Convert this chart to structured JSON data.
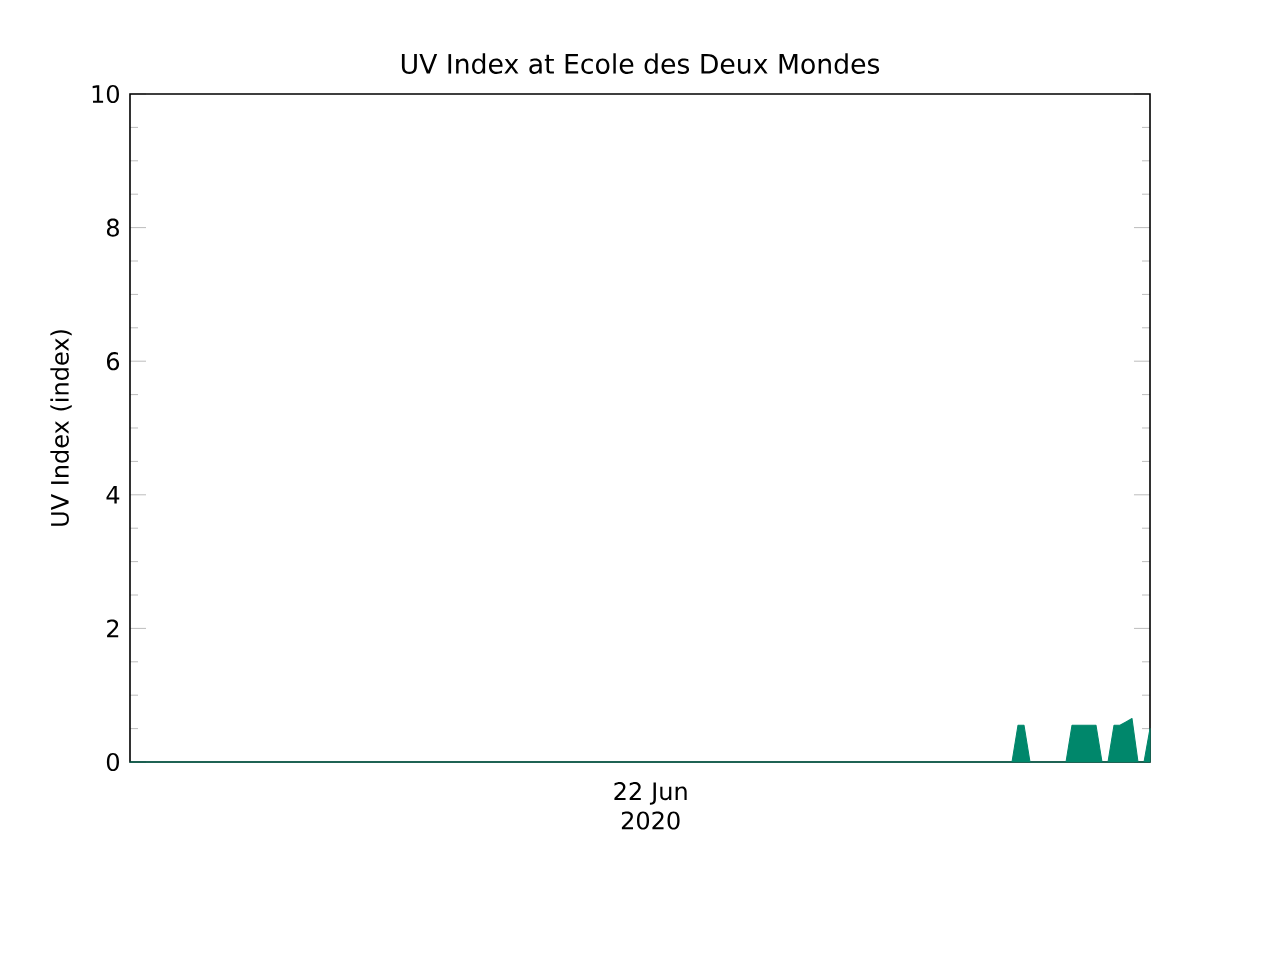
{
  "chart_data": {
    "type": "area",
    "title": "UV Index at Ecole des Deux Mondes",
    "ylabel": "UV Index (index)",
    "annotations": [
      "22 Jun\n2020"
    ],
    "categories": [
      null,
      null,
      null,
      null,
      null,
      null,
      null,
      null,
      null,
      null,
      null,
      null,
      null,
      null,
      null,
      null,
      null,
      null,
      null,
      null,
      null,
      null,
      null,
      null,
      null,
      null,
      null,
      null,
      null,
      null,
      null,
      null,
      null,
      null,
      null,
      null,
      null,
      null,
      null,
      null,
      null,
      null,
      null,
      null,
      null,
      null,
      null,
      null,
      null,
      null,
      null,
      null,
      null,
      null,
      null,
      null,
      null,
      null,
      null,
      null,
      null,
      null,
      null,
      null,
      null,
      null,
      null,
      null,
      null,
      null,
      null,
      null,
      null,
      null,
      null,
      null,
      null,
      null,
      null,
      null,
      null,
      null,
      null,
      null,
      null,
      null,
      null,
      null,
      null,
      null,
      null,
      null,
      null,
      null,
      null,
      null,
      null,
      null,
      null,
      null,
      null,
      null,
      null,
      null,
      null,
      null,
      null,
      null,
      null,
      null,
      null,
      null,
      null,
      null,
      null,
      null,
      null,
      null,
      null,
      null,
      null,
      null,
      null,
      null,
      null,
      null,
      null,
      null,
      null,
      null,
      null,
      null,
      null,
      null,
      null,
      null,
      null,
      null,
      null,
      null,
      null,
      null,
      null,
      null,
      null,
      null,
      null,
      null,
      null,
      null,
      null,
      null,
      null,
      null,
      null,
      null,
      null,
      null,
      null,
      null,
      null,
      null,
      null,
      null,
      null,
      null,
      null,
      null,
      null,
      null,
      null
    ],
    "values": [
      0,
      0,
      0,
      0,
      0,
      0,
      0,
      0,
      0,
      0,
      0,
      0,
      0,
      0,
      0,
      0,
      0,
      0,
      0,
      0,
      0,
      0,
      0,
      0,
      0,
      0,
      0,
      0,
      0,
      0,
      0,
      0,
      0,
      0,
      0,
      0,
      0,
      0,
      0,
      0,
      0,
      0,
      0,
      0,
      0,
      0,
      0,
      0,
      0,
      0,
      0,
      0,
      0,
      0,
      0,
      0,
      0,
      0,
      0,
      0,
      0,
      0,
      0,
      0,
      0,
      0,
      0,
      0,
      0,
      0,
      0,
      0,
      0,
      0,
      0,
      0,
      0,
      0,
      0,
      0,
      0,
      0,
      0,
      0,
      0,
      0,
      0,
      0,
      0,
      0,
      0,
      0,
      0,
      0,
      0,
      0,
      0,
      0,
      0,
      0,
      0,
      0,
      0,
      0,
      0,
      0,
      0,
      0,
      0,
      0,
      0,
      0,
      0,
      0,
      0,
      0,
      0,
      0,
      0,
      0,
      0,
      0,
      0,
      0,
      0,
      0,
      0,
      0,
      0,
      0,
      0,
      0,
      0,
      0,
      0,
      0,
      0,
      0,
      0,
      0,
      0,
      0,
      0,
      0,
      0,
      0,
      0,
      0,
      0.55,
      0.55,
      0,
      0,
      0,
      0,
      0,
      0,
      0,
      0.55,
      0.55,
      0.55,
      0.55,
      0.55,
      0,
      0,
      0.55,
      0.55,
      0.6,
      0.65,
      0,
      0,
      0.5
    ],
    "color": "#00876b",
    "ylim": [
      0,
      10
    ],
    "yticks": [
      0,
      2,
      4,
      6,
      8,
      10
    ],
    "grid": false
  }
}
